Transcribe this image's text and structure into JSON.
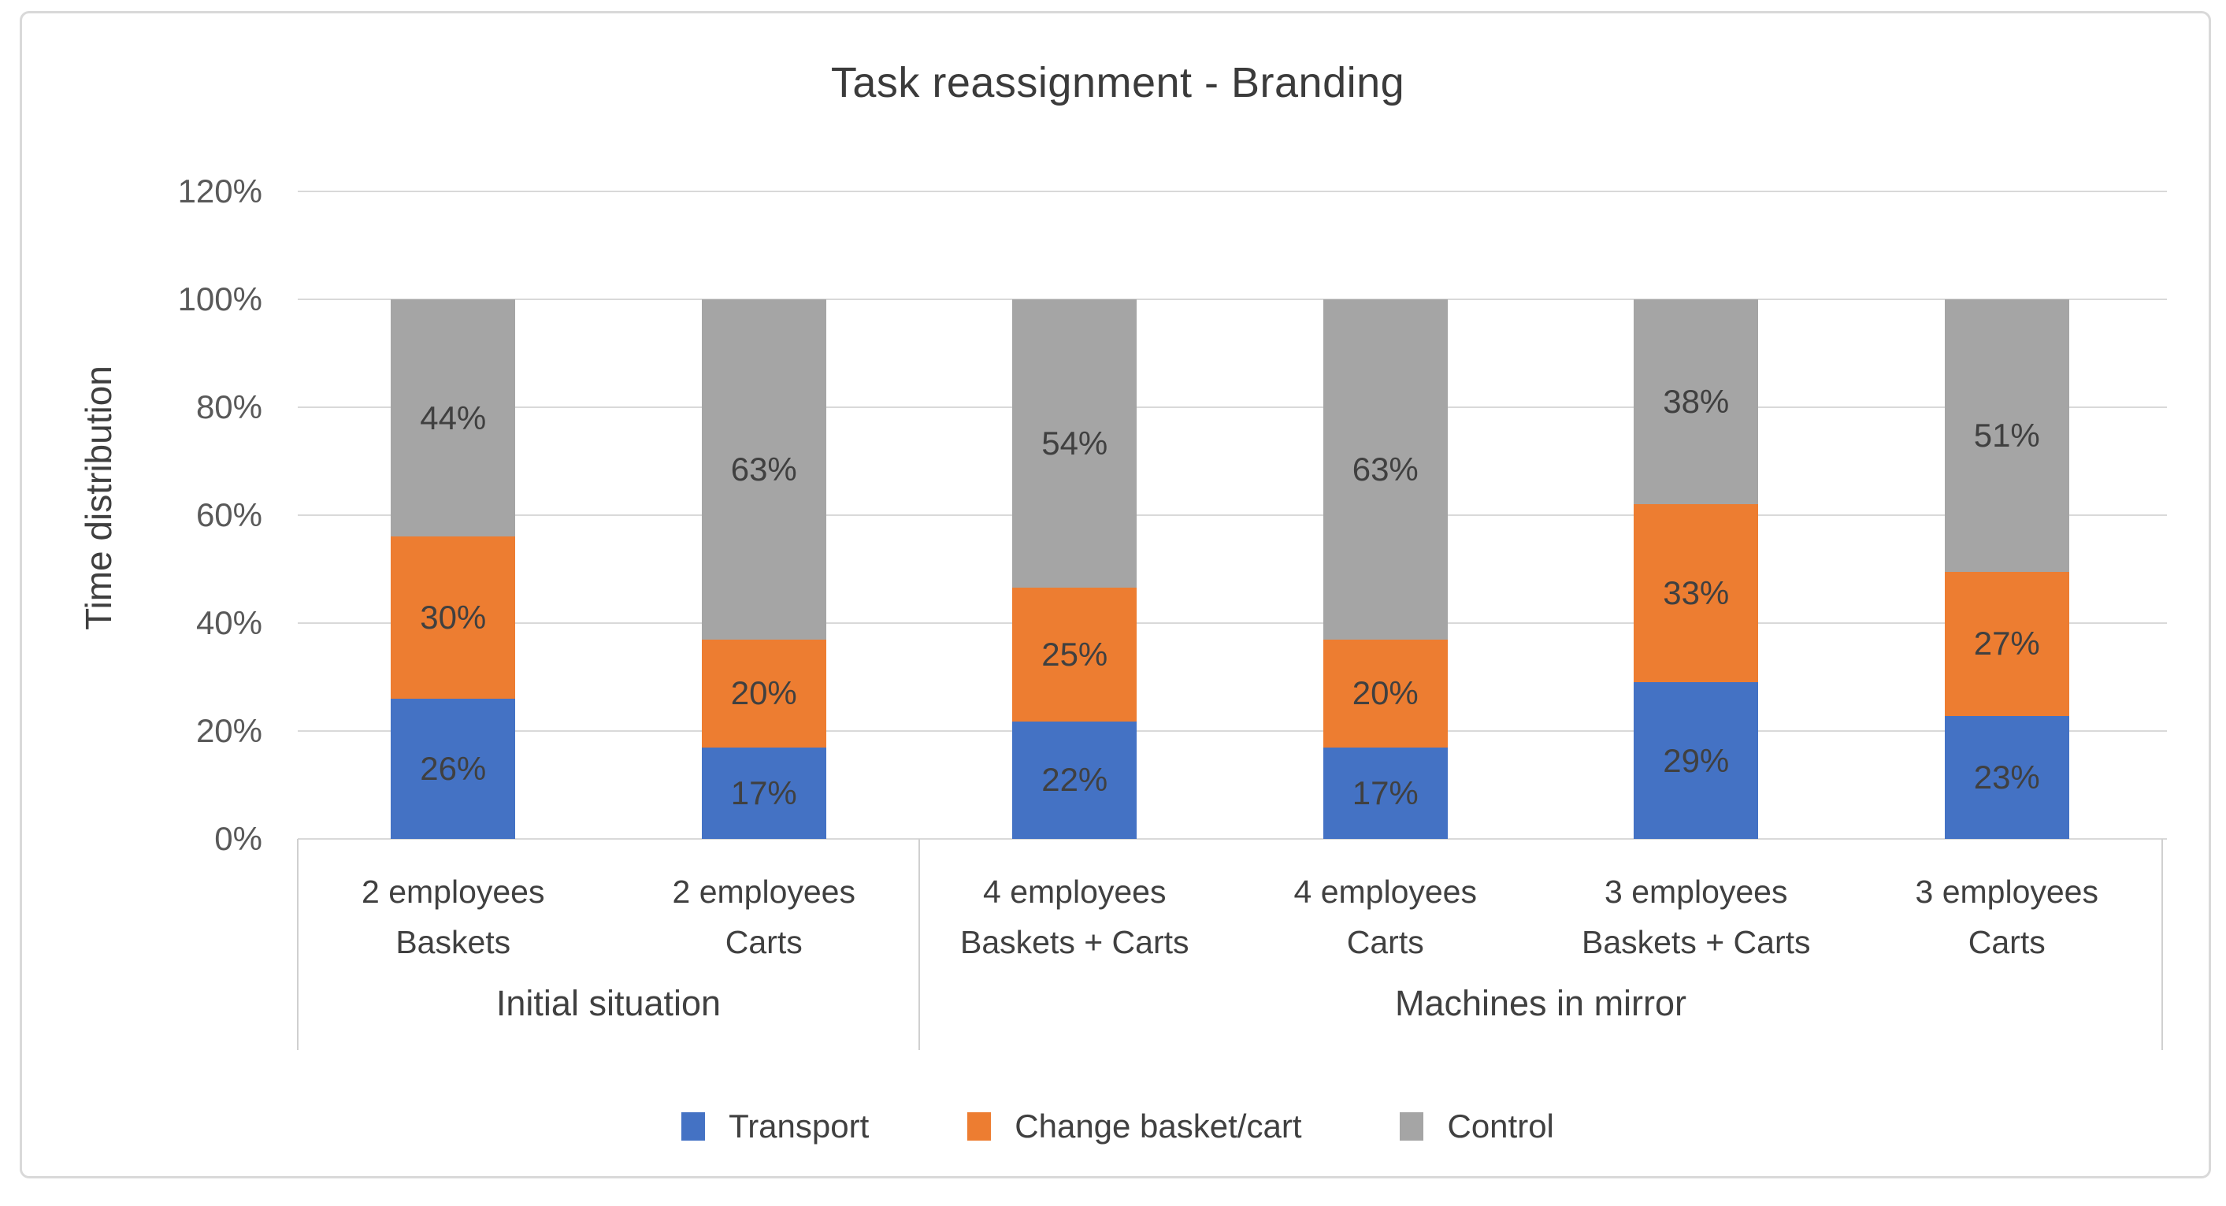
{
  "chart": {
    "title": "Task reassignment - Branding",
    "y_axis_title": "Time distribution"
  },
  "chart_data": {
    "type": "bar",
    "stacked": true,
    "title": "Task reassignment - Branding",
    "xlabel": "",
    "ylabel": "Time distribution",
    "ylim": [
      0,
      120
    ],
    "ytick_step": 20,
    "ytick_labels": [
      "0%",
      "20%",
      "40%",
      "60%",
      "80%",
      "100%",
      "120%"
    ],
    "grid": true,
    "legend_position": "bottom",
    "categories": [
      {
        "line1": "2 employees",
        "line2": "Baskets"
      },
      {
        "line1": "2 employees",
        "line2": "Carts"
      },
      {
        "line1": "4 employees",
        "line2": "Baskets + Carts"
      },
      {
        "line1": "4 employees",
        "line2": "Carts"
      },
      {
        "line1": "3 employees",
        "line2": "Baskets + Carts"
      },
      {
        "line1": "3 employees",
        "line2": "Carts"
      }
    ],
    "groups": [
      {
        "label": "Initial situation",
        "span": 2
      },
      {
        "label": "Machines in mirror",
        "span": 4
      }
    ],
    "series": [
      {
        "name": "Transport",
        "color": "#4472C4",
        "values": [
          26,
          17,
          22,
          17,
          29,
          23
        ]
      },
      {
        "name": "Change basket/cart",
        "color": "#ED7D31",
        "values": [
          30,
          20,
          25,
          20,
          33,
          27
        ]
      },
      {
        "name": "Control",
        "color": "#A5A5A5",
        "values": [
          44,
          63,
          54,
          63,
          38,
          51
        ]
      }
    ],
    "data_label_suffix": "%"
  },
  "colors": {
    "transport": "#4472C4",
    "change_basket_cart": "#ED7D31",
    "control": "#A5A5A5",
    "gridline": "#D9D9D9",
    "axis_line": "#D0D0D0",
    "tick_text": "#595959",
    "label_text": "#404040",
    "frame_border": "#D9D9D9"
  }
}
